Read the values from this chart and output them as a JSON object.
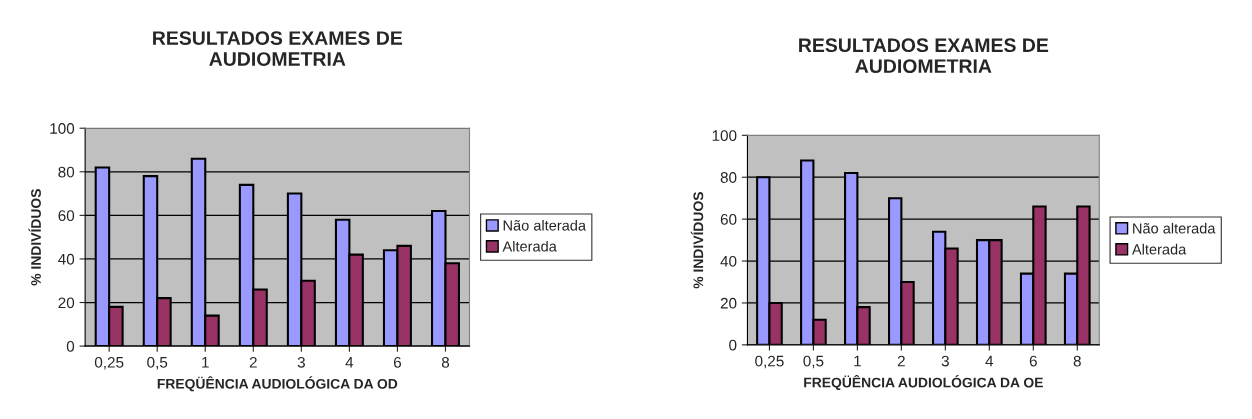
{
  "chart_data": [
    {
      "type": "bar",
      "title": "RESULTADOS EXAMES DE\nAUDIOMETRIA",
      "xlabel": "FREQÜÊNCIA AUDIOLÓGICA DA OD",
      "ylabel": "% INDIVÍDUOS",
      "categories": [
        "0,25",
        "0,5",
        "1",
        "2",
        "3",
        "4",
        "6",
        "8"
      ],
      "series": [
        {
          "name": "Não alterada",
          "color": "#9999ff",
          "values": [
            82,
            78,
            86,
            74,
            70,
            58,
            44,
            62
          ]
        },
        {
          "name": "Alterada",
          "color": "#993366",
          "values": [
            18,
            22,
            14,
            26,
            30,
            42,
            46,
            38
          ]
        }
      ],
      "ylim": [
        0,
        100
      ],
      "yticks": [
        0,
        20,
        40,
        60,
        80,
        100
      ],
      "grid": "y",
      "legend": "right"
    },
    {
      "type": "bar",
      "title": "RESULTADOS EXAMES DE\nAUDIOMETRIA",
      "xlabel": "FREQÜÊNCIA AUDIOLÓGICA DA OE",
      "ylabel": "% INDIVÍDUOS",
      "categories": [
        "0,25",
        "0,5",
        "1",
        "2",
        "3",
        "4",
        "6",
        "8"
      ],
      "series": [
        {
          "name": "Não alterada",
          "color": "#9999ff",
          "values": [
            80,
            88,
            82,
            70,
            54,
            50,
            34,
            34
          ]
        },
        {
          "name": "Alterada",
          "color": "#993366",
          "values": [
            20,
            12,
            18,
            30,
            46,
            50,
            66,
            66
          ]
        }
      ],
      "ylim": [
        0,
        100
      ],
      "yticks": [
        0,
        20,
        40,
        60,
        80,
        100
      ],
      "grid": "y",
      "legend": "right"
    }
  ]
}
